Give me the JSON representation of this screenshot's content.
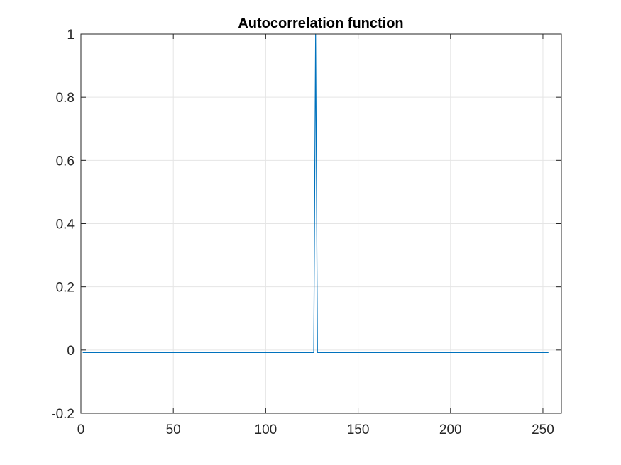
{
  "chart_data": {
    "type": "line",
    "title": "Autocorrelation function",
    "xlabel": "",
    "ylabel": "",
    "xlim": [
      0,
      260
    ],
    "ylim": [
      -0.2,
      1
    ],
    "x_ticks": [
      0,
      50,
      100,
      150,
      200,
      250
    ],
    "y_ticks": [
      -0.2,
      0,
      0.2,
      0.4,
      0.6,
      0.8,
      1
    ],
    "x_tick_labels": [
      "0",
      "50",
      "100",
      "150",
      "200",
      "250"
    ],
    "y_tick_labels": [
      "-0.2",
      "0",
      "0.2",
      "0.4",
      "0.6",
      "0.8",
      "1"
    ],
    "grid": true,
    "line_color": "#0072BD",
    "axis_color": "#262626",
    "grid_color": "#E5E5E5",
    "series": [
      {
        "x": [
          1,
          126,
          127,
          128,
          253
        ],
        "y": [
          -0.0079,
          -0.0079,
          1,
          -0.0079,
          -0.0079
        ]
      }
    ]
  }
}
